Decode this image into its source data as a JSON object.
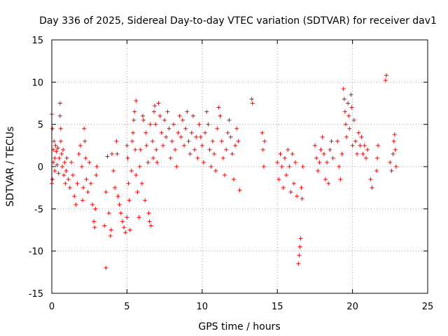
{
  "chart_data": {
    "type": "scatter",
    "title": "Day 336 of 2025, Sidereal Day-to-day VTEC variation (SDTVAR) for receiver dav1",
    "xlabel": "GPS time / hours",
    "ylabel": "SDTVAR / TECUs",
    "xlim": [
      0,
      25
    ],
    "ylim": [
      -15,
      15
    ],
    "xticks": [
      0,
      5,
      10,
      15,
      20,
      25
    ],
    "yticks": [
      -15,
      -10,
      -5,
      0,
      5,
      10,
      15
    ],
    "grid": true,
    "marker": "+",
    "color": "#ff0000",
    "series": [
      {
        "name": "SDTVAR",
        "points": [
          [
            0.0,
            6.2
          ],
          [
            0.0,
            -2.0
          ],
          [
            0.05,
            4.5
          ],
          [
            0.05,
            -1.5
          ],
          [
            0.1,
            2.0
          ],
          [
            0.1,
            0.5
          ],
          [
            0.15,
            3.0
          ],
          [
            0.2,
            1.0
          ],
          [
            0.2,
            -0.5
          ],
          [
            0.25,
            2.5
          ],
          [
            0.3,
            1.8
          ],
          [
            0.35,
            0.2
          ],
          [
            0.4,
            2.2
          ],
          [
            0.45,
            -0.8
          ],
          [
            0.5,
            1.0
          ],
          [
            0.55,
            7.5
          ],
          [
            0.55,
            6.0
          ],
          [
            0.6,
            4.5
          ],
          [
            0.6,
            3.0
          ],
          [
            0.65,
            1.5
          ],
          [
            0.7,
            0.0
          ],
          [
            0.75,
            2.0
          ],
          [
            0.8,
            -1.0
          ],
          [
            0.85,
            0.5
          ],
          [
            0.9,
            -2.0
          ],
          [
            0.95,
            -0.5
          ],
          [
            1.0,
            1.0
          ],
          [
            1.1,
            -1.5
          ],
          [
            1.2,
            -2.5
          ],
          [
            1.3,
            0.5
          ],
          [
            1.4,
            -1.0
          ],
          [
            1.5,
            -3.5
          ],
          [
            1.6,
            -4.5
          ],
          [
            1.7,
            -2.0
          ],
          [
            1.8,
            1.5
          ],
          [
            1.9,
            2.5
          ],
          [
            2.0,
            0.0
          ],
          [
            2.05,
            -4.0
          ],
          [
            2.1,
            -2.5
          ],
          [
            2.15,
            4.5
          ],
          [
            2.2,
            3.0
          ],
          [
            2.25,
            1.0
          ],
          [
            2.3,
            -1.5
          ],
          [
            2.4,
            -3.0
          ],
          [
            2.5,
            0.5
          ],
          [
            2.6,
            -2.0
          ],
          [
            2.7,
            -4.5
          ],
          [
            2.8,
            -6.5
          ],
          [
            2.85,
            -7.2
          ],
          [
            2.9,
            -5.0
          ],
          [
            2.95,
            -1.0
          ],
          [
            3.0,
            0.0
          ],
          [
            3.5,
            -7.0
          ],
          [
            3.6,
            -12.0
          ],
          [
            3.6,
            -3.0
          ],
          [
            3.7,
            1.2
          ],
          [
            3.8,
            -5.5
          ],
          [
            3.9,
            -8.2
          ],
          [
            3.95,
            -7.5
          ],
          [
            4.0,
            1.5
          ],
          [
            4.1,
            -0.5
          ],
          [
            4.2,
            -2.5
          ],
          [
            4.3,
            3.0
          ],
          [
            4.35,
            1.5
          ],
          [
            4.4,
            -3.5
          ],
          [
            4.5,
            -4.5
          ],
          [
            4.6,
            -5.5
          ],
          [
            4.7,
            -6.5
          ],
          [
            4.8,
            -7.2
          ],
          [
            4.9,
            -7.8
          ],
          [
            5.0,
            -6.0
          ],
          [
            5.0,
            2.5
          ],
          [
            5.05,
            1.0
          ],
          [
            5.1,
            -2.0
          ],
          [
            5.15,
            -4.0
          ],
          [
            5.2,
            -7.5
          ],
          [
            5.3,
            -0.5
          ],
          [
            5.35,
            3.0
          ],
          [
            5.4,
            4.0
          ],
          [
            5.45,
            5.5
          ],
          [
            5.5,
            6.5
          ],
          [
            5.55,
            2.0
          ],
          [
            5.6,
            -1.0
          ],
          [
            5.6,
            7.8
          ],
          [
            5.7,
            -3.0
          ],
          [
            5.8,
            -6.0
          ],
          [
            5.85,
            0.0
          ],
          [
            5.9,
            2.0
          ],
          [
            6.0,
            -2.0
          ],
          [
            6.05,
            6.0
          ],
          [
            6.1,
            5.5
          ],
          [
            6.2,
            -4.0
          ],
          [
            6.25,
            4.0
          ],
          [
            6.3,
            2.5
          ],
          [
            6.4,
            0.5
          ],
          [
            6.45,
            -5.5
          ],
          [
            6.5,
            -6.5
          ],
          [
            6.55,
            5.0
          ],
          [
            6.6,
            -7.0
          ],
          [
            6.7,
            3.0
          ],
          [
            6.75,
            1.0
          ],
          [
            6.8,
            6.5
          ],
          [
            6.85,
            7.2
          ],
          [
            6.9,
            5.0
          ],
          [
            6.95,
            2.0
          ],
          [
            7.0,
            0.5
          ],
          [
            7.1,
            7.5
          ],
          [
            7.2,
            6.0
          ],
          [
            7.3,
            4.0
          ],
          [
            7.4,
            2.5
          ],
          [
            7.5,
            5.5
          ],
          [
            7.6,
            3.5
          ],
          [
            7.7,
            6.5
          ],
          [
            7.8,
            4.5
          ],
          [
            7.9,
            1.0
          ],
          [
            8.0,
            3.0
          ],
          [
            8.1,
            5.0
          ],
          [
            8.2,
            2.0
          ],
          [
            8.3,
            0.0
          ],
          [
            8.4,
            4.0
          ],
          [
            8.5,
            6.0
          ],
          [
            8.6,
            3.5
          ],
          [
            8.7,
            5.5
          ],
          [
            8.8,
            2.5
          ],
          [
            8.9,
            4.5
          ],
          [
            9.0,
            6.5
          ],
          [
            9.1,
            3.0
          ],
          [
            9.2,
            1.5
          ],
          [
            9.3,
            4.0
          ],
          [
            9.4,
            6.0
          ],
          [
            9.5,
            2.0
          ],
          [
            9.6,
            3.5
          ],
          [
            9.7,
            1.0
          ],
          [
            9.8,
            5.0
          ],
          [
            9.9,
            3.5
          ],
          [
            10.0,
            2.5
          ],
          [
            10.1,
            0.5
          ],
          [
            10.2,
            4.0
          ],
          [
            10.3,
            6.5
          ],
          [
            10.4,
            5.0
          ],
          [
            10.5,
            2.0
          ],
          [
            10.6,
            0.0
          ],
          [
            10.7,
            3.0
          ],
          [
            10.8,
            1.5
          ],
          [
            10.9,
            -0.5
          ],
          [
            11.0,
            4.5
          ],
          [
            11.1,
            7.0
          ],
          [
            11.2,
            6.0
          ],
          [
            11.3,
            3.0
          ],
          [
            11.4,
            1.0
          ],
          [
            11.5,
            -1.0
          ],
          [
            11.6,
            2.0
          ],
          [
            11.7,
            4.0
          ],
          [
            11.8,
            5.5
          ],
          [
            11.9,
            3.5
          ],
          [
            12.0,
            1.5
          ],
          [
            12.1,
            -1.5
          ],
          [
            12.2,
            2.5
          ],
          [
            12.3,
            4.5
          ],
          [
            12.4,
            3.0
          ],
          [
            12.5,
            -2.8
          ],
          [
            13.3,
            8.0
          ],
          [
            13.35,
            7.5
          ],
          [
            14.0,
            4.0
          ],
          [
            14.05,
            2.0
          ],
          [
            14.1,
            0.0
          ],
          [
            14.15,
            3.0
          ],
          [
            15.0,
            0.5
          ],
          [
            15.1,
            -1.5
          ],
          [
            15.2,
            1.5
          ],
          [
            15.3,
            0.0
          ],
          [
            15.4,
            -2.5
          ],
          [
            15.5,
            1.0
          ],
          [
            15.6,
            -1.0
          ],
          [
            15.7,
            2.0
          ],
          [
            15.8,
            0.0
          ],
          [
            15.9,
            -3.0
          ],
          [
            16.0,
            1.5
          ],
          [
            16.1,
            -2.0
          ],
          [
            16.2,
            0.5
          ],
          [
            16.3,
            -3.5
          ],
          [
            16.4,
            -11.5
          ],
          [
            16.45,
            -10.5
          ],
          [
            16.5,
            -9.5
          ],
          [
            16.55,
            -8.5
          ],
          [
            16.6,
            -2.5
          ],
          [
            16.65,
            -3.8
          ],
          [
            16.7,
            0.0
          ],
          [
            17.5,
            2.5
          ],
          [
            17.6,
            1.0
          ],
          [
            17.7,
            -0.5
          ],
          [
            17.8,
            0.5
          ],
          [
            17.9,
            2.0
          ],
          [
            18.0,
            3.5
          ],
          [
            18.1,
            1.5
          ],
          [
            18.2,
            -1.5
          ],
          [
            18.3,
            0.5
          ],
          [
            18.4,
            -2.0
          ],
          [
            18.5,
            2.0
          ],
          [
            18.6,
            3.0
          ],
          [
            18.7,
            1.0
          ],
          [
            19.0,
            3.0
          ],
          [
            19.1,
            0.0
          ],
          [
            19.2,
            -1.5
          ],
          [
            19.3,
            1.5
          ],
          [
            19.4,
            9.2
          ],
          [
            19.45,
            8.0
          ],
          [
            19.5,
            6.5
          ],
          [
            19.55,
            5.0
          ],
          [
            19.6,
            3.5
          ],
          [
            19.7,
            7.5
          ],
          [
            19.75,
            6.0
          ],
          [
            19.8,
            4.5
          ],
          [
            19.9,
            8.5
          ],
          [
            19.95,
            7.0
          ],
          [
            20.0,
            2.5
          ],
          [
            20.1,
            5.5
          ],
          [
            20.2,
            3.0
          ],
          [
            20.3,
            1.5
          ],
          [
            20.4,
            4.0
          ],
          [
            20.5,
            2.5
          ],
          [
            20.6,
            3.5
          ],
          [
            20.7,
            1.5
          ],
          [
            20.8,
            2.5
          ],
          [
            20.9,
            1.0
          ],
          [
            21.0,
            2.0
          ],
          [
            21.2,
            -1.5
          ],
          [
            21.3,
            -2.5
          ],
          [
            21.6,
            -0.5
          ],
          [
            21.65,
            1.0
          ],
          [
            21.7,
            2.5
          ],
          [
            22.2,
            10.2
          ],
          [
            22.25,
            10.8
          ],
          [
            22.5,
            0.5
          ],
          [
            22.6,
            -0.5
          ],
          [
            22.7,
            1.5
          ],
          [
            22.75,
            3.0
          ],
          [
            22.8,
            3.8
          ],
          [
            22.85,
            2.0
          ],
          [
            22.9,
            0.0
          ]
        ]
      }
    ]
  }
}
